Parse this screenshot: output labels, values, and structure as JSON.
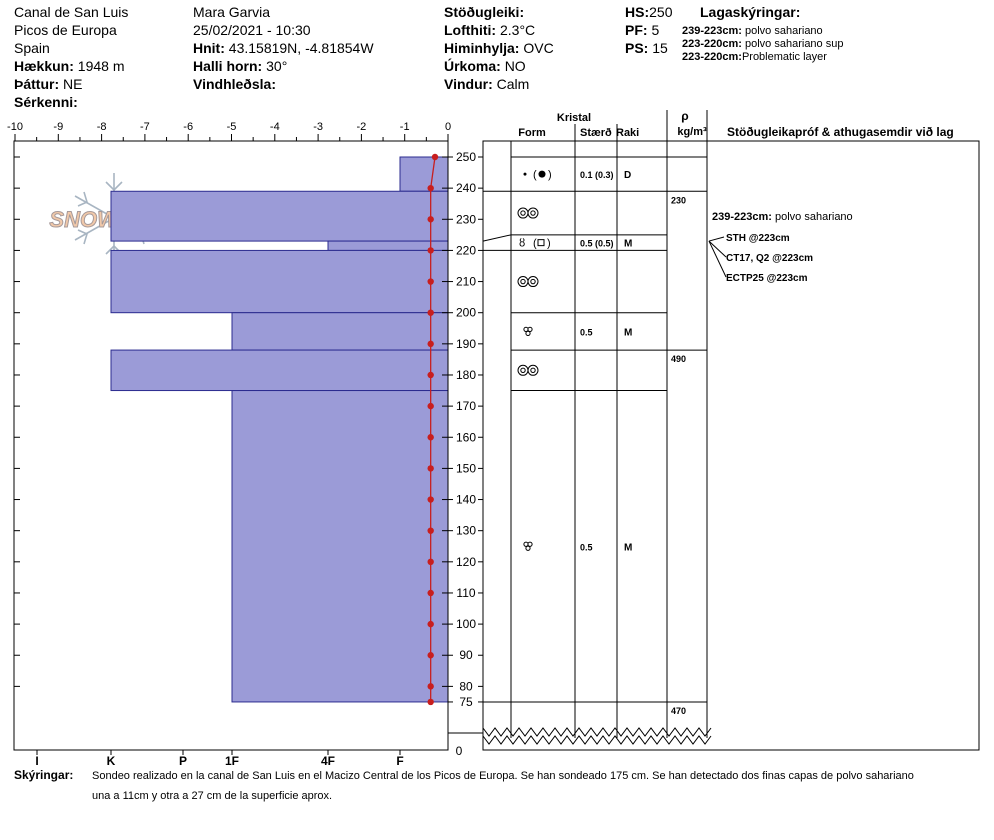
{
  "header": {
    "location": "Canal de San Luis",
    "range": "Picos de Europa",
    "country": "Spain",
    "elevation_label": "Hækkun:",
    "elevation_value": "1948 m",
    "aspect_label": "Þáttur:",
    "aspect_value": "NE",
    "specifics_label": "Sérkenni:",
    "observer": "Mara Garvia",
    "datetime": "25/02/2021 - 10:30",
    "coords_label": "Hnit:",
    "coords_value": "43.15819N, -4.81854W",
    "slope_label": "Halli horn:",
    "slope_value": "30°",
    "wind_loading_label": "Vindhleðsla:",
    "stability_label": "Stöðugleiki:",
    "airtemp_label": "Lofthiti:",
    "airtemp_value": "2.3°C",
    "sky_label": "Himinhylja:",
    "sky_value": "OVC",
    "precip_label": "Úrkoma:",
    "precip_value": "NO",
    "wind_label": "Vindur:",
    "wind_value": "Calm",
    "hs_label": "HS:",
    "hs_value": "250",
    "pf_label": "PF:",
    "pf_value": "5",
    "ps_label": "PS:",
    "ps_value": "15",
    "legend_title": "Lagaskýringar:",
    "legend": [
      {
        "range": "239-223cm:",
        "text": "polvo sahariano"
      },
      {
        "range": "223-220cm:",
        "text": "polvo sahariano sup"
      },
      {
        "range": "223-220cm:",
        "text": "Problematic layer"
      }
    ]
  },
  "axes": {
    "temp_ticks": [
      "-10",
      "-9",
      "-8",
      "-7",
      "-6",
      "-5",
      "-4",
      "-3",
      "-2",
      "-1",
      "0"
    ],
    "height_ticks": [
      "250",
      "240",
      "230",
      "220",
      "210",
      "200",
      "190",
      "180",
      "170",
      "160",
      "150",
      "140",
      "130",
      "120",
      "110",
      "100",
      "90",
      "80",
      "75"
    ],
    "zero_label": "0",
    "hardness_labels": [
      "I",
      "K",
      "P",
      "1F",
      "4F",
      "F"
    ]
  },
  "columns": {
    "crystal": "Kristal",
    "form": "Form",
    "size": "Stærð",
    "moisture": "Raki",
    "rho": "ρ",
    "rho_unit": "kg/m³",
    "stability_title": "Stöðugleikapróf & athugasemdir við lag"
  },
  "chart_data": {
    "type": "snow-profile",
    "temperature_axis": {
      "min": -10,
      "max": 0,
      "unit": "°C"
    },
    "height_axis": {
      "min": 0,
      "max": 250,
      "visible_top": 250,
      "visible_bottom": 75,
      "unit": "cm"
    },
    "hardness_layers": [
      {
        "top": 250,
        "bottom": 239,
        "hardness": "F"
      },
      {
        "top": 239,
        "bottom": 223,
        "hardness": "K"
      },
      {
        "top": 223,
        "bottom": 220,
        "hardness": "4F"
      },
      {
        "top": 220,
        "bottom": 200,
        "hardness": "K"
      },
      {
        "top": 200,
        "bottom": 188,
        "hardness": "1F"
      },
      {
        "top": 188,
        "bottom": 175,
        "hardness": "K"
      },
      {
        "top": 175,
        "bottom": 75,
        "hardness": "1F"
      }
    ],
    "temperature_profile": [
      {
        "h": 250,
        "t": -0.3
      },
      {
        "h": 240,
        "t": -0.4
      },
      {
        "h": 230,
        "t": -0.4
      },
      {
        "h": 220,
        "t": -0.4
      },
      {
        "h": 210,
        "t": -0.4
      },
      {
        "h": 200,
        "t": -0.4
      },
      {
        "h": 190,
        "t": -0.4
      },
      {
        "h": 180,
        "t": -0.4
      },
      {
        "h": 170,
        "t": -0.4
      },
      {
        "h": 160,
        "t": -0.4
      },
      {
        "h": 150,
        "t": -0.4
      },
      {
        "h": 140,
        "t": -0.4
      },
      {
        "h": 130,
        "t": -0.4
      },
      {
        "h": 120,
        "t": -0.4
      },
      {
        "h": 110,
        "t": -0.4
      },
      {
        "h": 100,
        "t": -0.4
      },
      {
        "h": 90,
        "t": -0.4
      },
      {
        "h": 80,
        "t": -0.4
      },
      {
        "h": 75,
        "t": -0.4
      }
    ],
    "crystal_layers": [
      {
        "top": 250,
        "bottom": 239,
        "form": "dot-filled",
        "size": "0.1 (0.3)",
        "moisture": "D"
      },
      {
        "top": 239,
        "bottom": 225,
        "form": "double-ring",
        "size": "",
        "moisture": ""
      },
      {
        "top": 225,
        "bottom": 220,
        "form": "bulb-box",
        "size": "0.5 (0.5)",
        "moisture": "M"
      },
      {
        "top": 220,
        "bottom": 200,
        "form": "double-ring",
        "size": "",
        "moisture": ""
      },
      {
        "top": 200,
        "bottom": 188,
        "form": "trefoil",
        "size": "0.5",
        "moisture": "M"
      },
      {
        "top": 188,
        "bottom": 175,
        "form": "double-ring",
        "size": "",
        "moisture": ""
      },
      {
        "top": 175,
        "bottom": 75,
        "form": "trefoil",
        "size": "0.5",
        "moisture": "M"
      }
    ],
    "density": [
      {
        "top": 250,
        "bottom": 239,
        "value": ""
      },
      {
        "top": 239,
        "bottom": 188,
        "value": "230"
      },
      {
        "top": 188,
        "bottom": 75,
        "value": "490"
      },
      {
        "top": 75,
        "bottom": 0,
        "value": "470"
      }
    ]
  },
  "comments": {
    "layer_note_range": "239-223cm:",
    "layer_note_text": "polvo sahariano",
    "tests": [
      "STH @223cm",
      "CT17, Q2 @223cm",
      "ECTP25 @223cm"
    ]
  },
  "footer": {
    "label": "Skýringar:",
    "line1": "Sondeo realizado en la canal de San Luis en el Macizo Central de los Picos de Europa. Se han sondeado 175 cm. Se han detectado dos finas capas de polvo sahariano",
    "line2": "una a 11cm y otra a 27 cm de la superficie aprox."
  },
  "logo": {
    "text": "SNOWPILOT"
  },
  "colors": {
    "hardness_fill": "#9b9bd7",
    "hardness_stroke": "#2b2b8f",
    "temp_line": "#c81e1e"
  }
}
